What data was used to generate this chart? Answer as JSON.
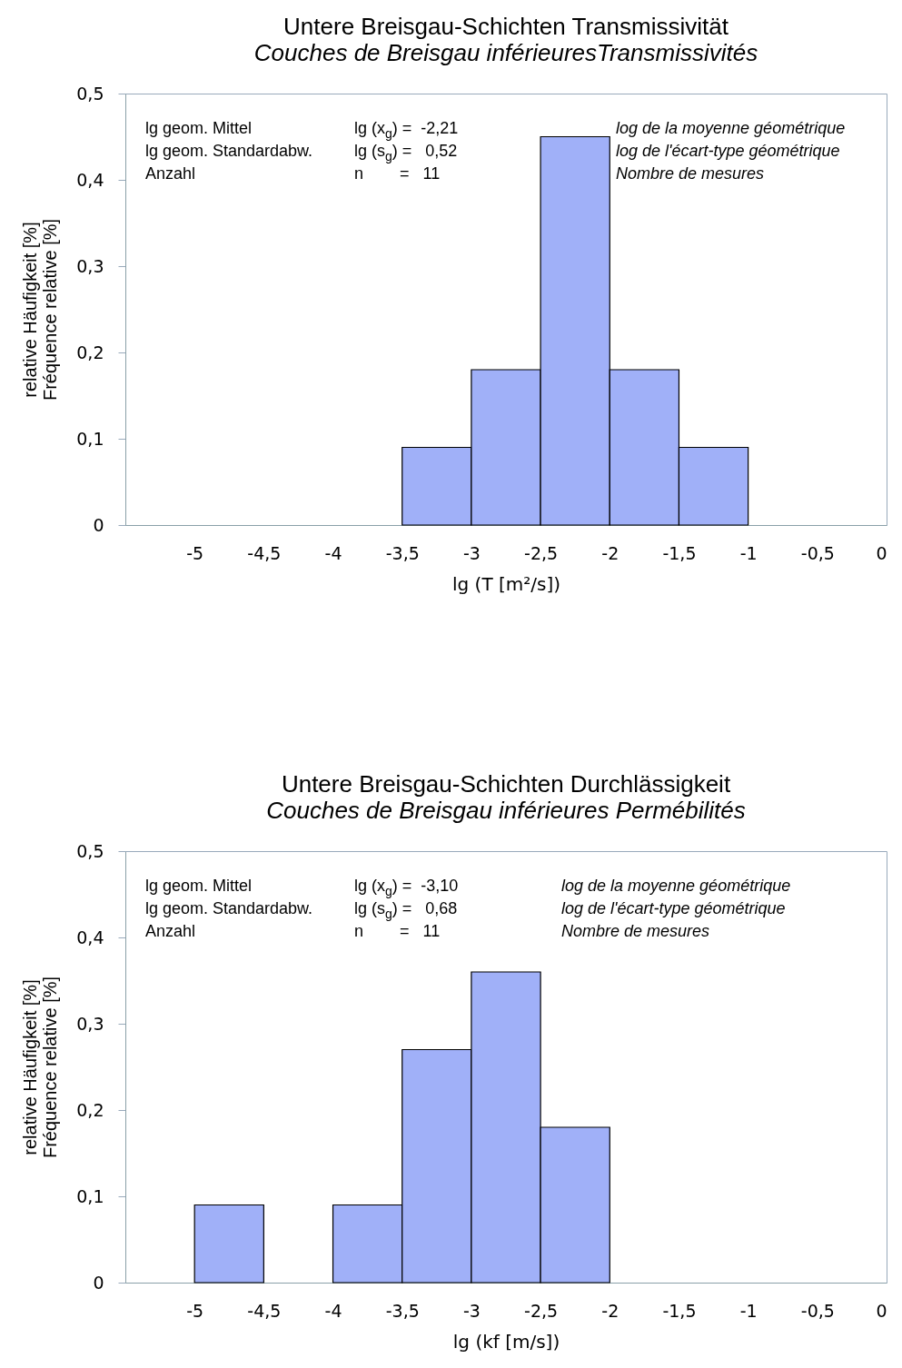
{
  "chart_data": [
    {
      "type": "histogram",
      "title": "Untere Breisgau-Schichten Transmissivität",
      "subtitle": "Couches de Breisgau inférieuresTransmissivités",
      "xlabel": "lg (T [m²/s])",
      "ylabel": [
        "relative Häufigkeit [%]",
        "Fréquence relative [%]"
      ],
      "bins": [
        -3.5,
        -3,
        -2.5,
        -2,
        -1.5,
        -1
      ],
      "values": [
        0.09,
        0.18,
        0.45,
        0.18,
        0.09
      ],
      "color": "#a0b0f8",
      "xlim": [
        -5.5,
        0
      ],
      "xticks": [
        -5,
        {
          "value": -4.5,
          "label": "-4,5"
        },
        -4,
        {
          "value": -3.5,
          "label": "-3,5"
        },
        -3,
        {
          "value": -2.5,
          "label": "-2,5"
        },
        -2,
        {
          "value": -1.5,
          "label": "-1,5"
        },
        -1,
        {
          "value": -0.5,
          "label": "-0,5"
        },
        0
      ],
      "ylim": [
        0,
        0.5
      ],
      "yticks": [
        0,
        {
          "value": 0.1,
          "label": "0,1"
        },
        {
          "value": 0.2,
          "label": "0,2"
        },
        {
          "value": 0.3,
          "label": "0,3"
        },
        {
          "value": 0.4,
          "label": "0,4"
        },
        {
          "value": 0.5,
          "label": "0,5"
        }
      ],
      "grid": false,
      "annotations": [
        "lg geom. Mittel",
        "lg (x$_{g}$) =  -2,21",
        "log de la moyenne géométrique",
        "lg geom. Standardabw.",
        "lg (s$_{g}$) =   0,52",
        "log de l'écart-type géométrique",
        "Anzahl",
        "n        =   11",
        "Nombre de mesures"
      ]
    },
    {
      "type": "histogram",
      "title": "Untere Breisgau-Schichten Durchlässigkeit",
      "subtitle": "Couches de Breisgau inférieures Permébilités",
      "xlabel": "lg (kf [m/s])",
      "ylabel": [
        "relative Häufigkeit [%]",
        "Fréquence relative [%]"
      ],
      "bins": [
        -5,
        -4.5,
        -4,
        -3.5,
        -3,
        -2.5,
        -2
      ],
      "values": [
        0.09,
        null,
        0.09,
        0.27,
        0.36,
        0.18
      ],
      "color": "#a0b0f8",
      "xlim": [
        -5.5,
        0
      ],
      "xticks": [
        -5,
        {
          "value": -4.5,
          "label": "-4,5"
        },
        -4,
        {
          "value": -3.5,
          "label": "-3,5"
        },
        -3,
        {
          "value": -2.5,
          "label": "-2,5"
        },
        -2,
        {
          "value": -1.5,
          "label": "-1,5"
        },
        -1,
        {
          "value": -0.5,
          "label": "-0,5"
        },
        0
      ],
      "ylim": [
        0,
        0.5
      ],
      "yticks": [
        0,
        {
          "value": 0.1,
          "label": "0,1"
        },
        {
          "value": 0.2,
          "label": "0,2"
        },
        {
          "value": 0.3,
          "label": "0,3"
        },
        {
          "value": 0.4,
          "label": "0,4"
        },
        {
          "value": 0.5,
          "label": "0,5"
        }
      ],
      "grid": false,
      "annotations": [
        "lg geom. Mittel",
        "lg (x$_{g}$) =  -3,10",
        "log de la moyenne géométrique",
        "lg geom. Standardabw.",
        "lg (s$_{g}$) =   0,68",
        "log de l'écart-type géométrique",
        "Anzahl",
        "n        =   11",
        "Nombre de mesures"
      ]
    }
  ]
}
